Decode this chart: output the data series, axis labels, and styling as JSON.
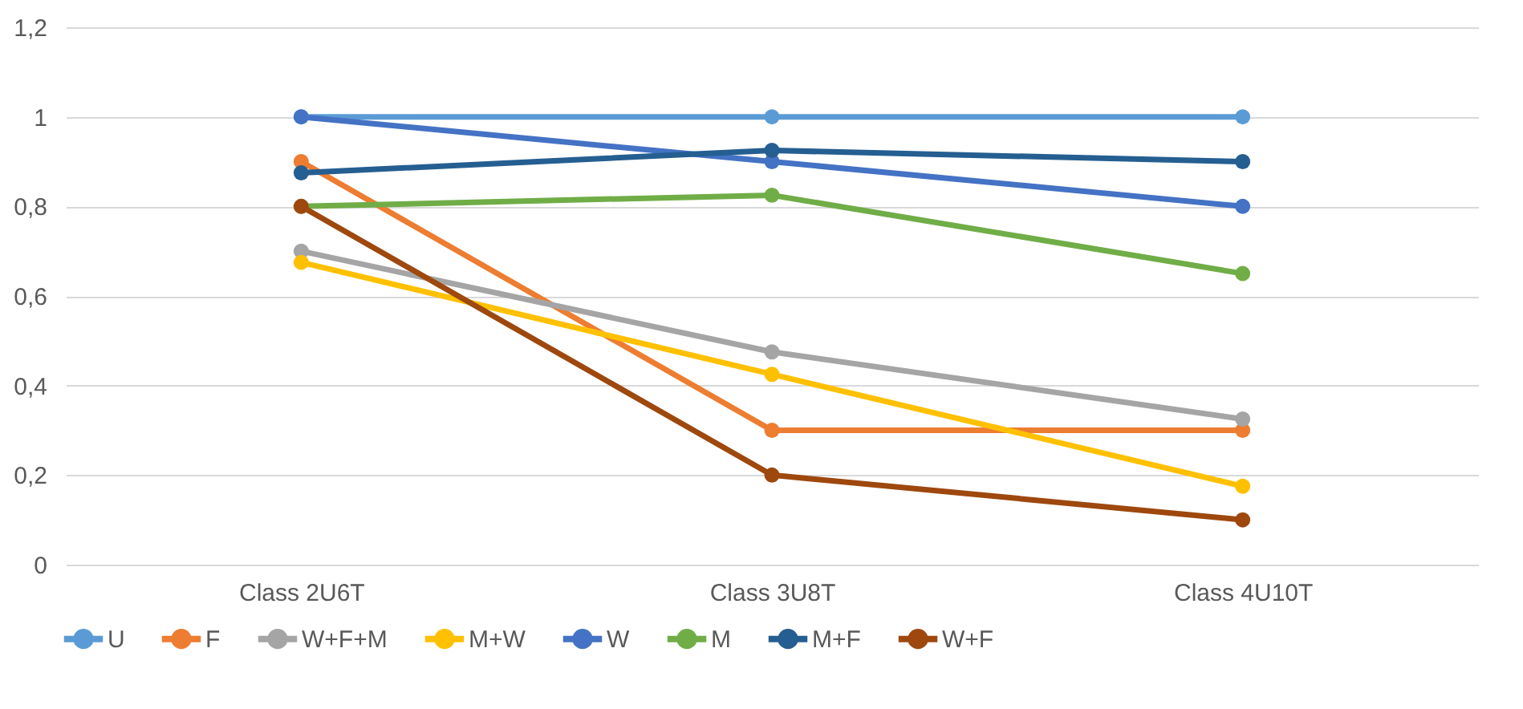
{
  "chart_data": {
    "type": "line",
    "categories": [
      "Class 2U6T",
      "Class 3U8T",
      "Class 4U10T"
    ],
    "series": [
      {
        "name": "U",
        "color": "#5b9bd5",
        "values": [
          1,
          1,
          1
        ]
      },
      {
        "name": "F",
        "color": "#ed7d31",
        "values": [
          0.9,
          0.3,
          0.3
        ]
      },
      {
        "name": "W+F+M",
        "color": "#a5a5a5",
        "values": [
          0.7,
          0.475,
          0.325
        ]
      },
      {
        "name": "M+W",
        "color": "#ffc000",
        "values": [
          0.675,
          0.425,
          0.175
        ]
      },
      {
        "name": "W",
        "color": "#4472c4",
        "values": [
          1,
          0.9,
          0.8
        ]
      },
      {
        "name": "M",
        "color": "#70ad47",
        "values": [
          0.8,
          0.825,
          0.65
        ]
      },
      {
        "name": "M+F",
        "color": "#255e91",
        "values": [
          0.875,
          0.925,
          0.9
        ]
      },
      {
        "name": "W+F",
        "color": "#9e480e",
        "values": [
          0.8,
          0.2,
          0.1
        ]
      }
    ],
    "ylim": [
      0,
      1.2
    ],
    "yticks": [
      0,
      {
        "value": 0.2,
        "label": "0,2"
      },
      {
        "value": 0.4,
        "label": "0,4"
      },
      {
        "value": 0.6,
        "label": "0,6"
      },
      {
        "value": 0.8,
        "label": "0,8"
      },
      1,
      {
        "value": 1.2,
        "label": "1,2"
      }
    ],
    "grid": "y",
    "legend": "bottom",
    "marker": "circle",
    "line_style": "solid"
  }
}
